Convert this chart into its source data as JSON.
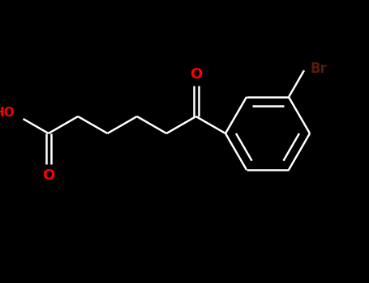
{
  "bg_color": "#000000",
  "bond_color": "#ffffff",
  "oxygen_color": "#ff0000",
  "bromine_color": "#5a1a0a",
  "bromine_text": "Br",
  "ho_color": "#ff0000",
  "ho_text": "HO",
  "o_text": "O",
  "fig_width": 4.55,
  "fig_height": 3.5,
  "dpi": 100,
  "lw": 1.8
}
